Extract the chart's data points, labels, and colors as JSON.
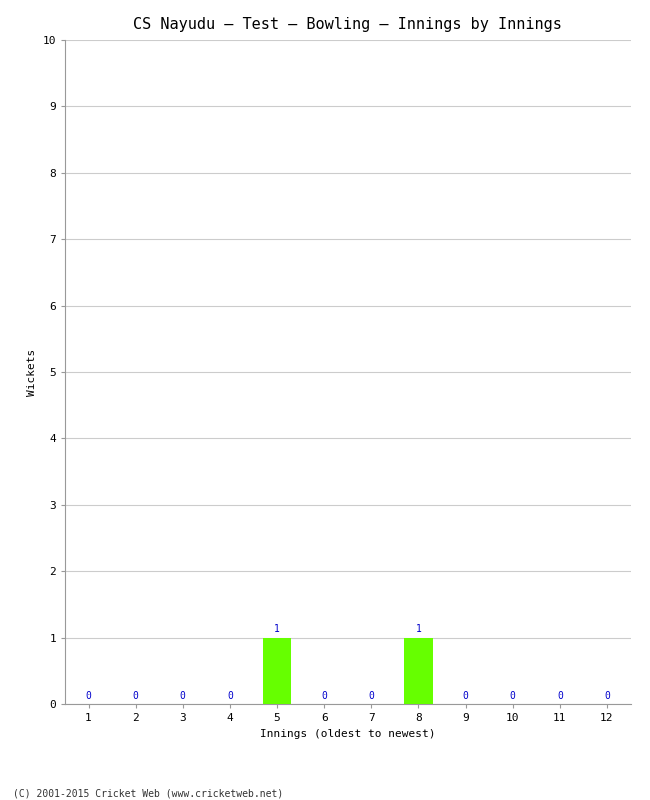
{
  "title": "CS Nayudu – Test – Bowling – Innings by Innings",
  "xlabel": "Innings (oldest to newest)",
  "ylabel": "Wickets",
  "categories": [
    1,
    2,
    3,
    4,
    5,
    6,
    7,
    8,
    9,
    10,
    11,
    12
  ],
  "values": [
    0,
    0,
    0,
    0,
    1,
    0,
    0,
    1,
    0,
    0,
    0,
    0
  ],
  "bar_color": "#66ff00",
  "label_color": "#0000cc",
  "ylim": [
    0,
    10
  ],
  "yticks": [
    0,
    1,
    2,
    3,
    4,
    5,
    6,
    7,
    8,
    9,
    10
  ],
  "background_color": "#ffffff",
  "grid_color": "#cccccc",
  "title_fontsize": 11,
  "axis_label_fontsize": 8,
  "tick_fontsize": 8,
  "annotation_fontsize": 7,
  "footer": "(C) 2001-2015 Cricket Web (www.cricketweb.net)",
  "footer_fontsize": 7
}
